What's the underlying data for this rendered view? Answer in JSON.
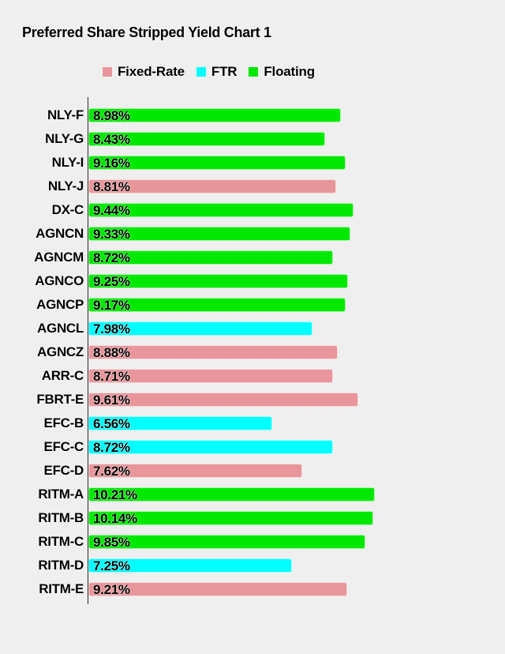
{
  "page": {
    "background": "#EFEFEF"
  },
  "header": {
    "title": "Preferred Share Stripped Yield Chart 1"
  },
  "legend": {
    "items": [
      {
        "label": "Fixed-Rate",
        "color": "#E8969B"
      },
      {
        "label": "FTR",
        "color": "#00FFFF"
      },
      {
        "label": "Floating",
        "color": "#00E800"
      }
    ]
  },
  "chart_data": {
    "type": "bar",
    "orientation": "horizontal",
    "title": "Preferred Share Stripped Yield Chart 1",
    "categories": [
      "NLY-F",
      "NLY-G",
      "NLY-I",
      "NLY-J",
      "DX-C",
      "AGNCN",
      "AGNCM",
      "AGNCO",
      "AGNCP",
      "AGNCL",
      "AGNCZ",
      "ARR-C",
      "FBRT-E",
      "EFC-B",
      "EFC-C",
      "EFC-D",
      "RITM-A",
      "RITM-B",
      "RITM-C",
      "RITM-D",
      "RITM-E"
    ],
    "values": [
      8.98,
      8.43,
      9.16,
      8.81,
      9.44,
      9.33,
      8.72,
      9.25,
      9.17,
      7.98,
      8.88,
      8.71,
      9.61,
      6.56,
      8.72,
      7.62,
      10.21,
      10.14,
      9.85,
      7.25,
      9.21
    ],
    "value_labels": [
      "8.98%",
      "8.43%",
      "9.16%",
      "8.81%",
      "9.44%",
      "9.33%",
      "8.72%",
      "9.25%",
      "9.17%",
      "7.98%",
      "8.88%",
      "8.71%",
      "9.61%",
      "6.56%",
      "8.72%",
      "7.62%",
      "10.21%",
      "10.14%",
      "9.85%",
      "7.25%",
      "9.21%"
    ],
    "bar_types": [
      "Floating",
      "Floating",
      "Floating",
      "Fixed-Rate",
      "Floating",
      "Floating",
      "Floating",
      "Floating",
      "Floating",
      "FTR",
      "Fixed-Rate",
      "Fixed-Rate",
      "Fixed-Rate",
      "FTR",
      "FTR",
      "Fixed-Rate",
      "Floating",
      "Floating",
      "Floating",
      "FTR",
      "Fixed-Rate"
    ],
    "colors_by_type": {
      "Fixed-Rate": "#E8969B",
      "FTR": "#00FFFF",
      "Floating": "#00E800"
    },
    "series": [
      {
        "name": "Fixed-Rate",
        "color": "#E8969B",
        "categories": [
          "NLY-J",
          "AGNCZ",
          "ARR-C",
          "FBRT-E",
          "EFC-D",
          "RITM-E"
        ],
        "values": [
          8.81,
          8.88,
          8.71,
          9.61,
          7.62,
          9.21
        ]
      },
      {
        "name": "FTR",
        "color": "#00FFFF",
        "categories": [
          "AGNCL",
          "EFC-B",
          "EFC-C",
          "RITM-D"
        ],
        "values": [
          7.98,
          6.56,
          8.72,
          7.25
        ]
      },
      {
        "name": "Floating",
        "color": "#00E800",
        "categories": [
          "NLY-F",
          "NLY-G",
          "NLY-I",
          "DX-C",
          "AGNCN",
          "AGNCM",
          "AGNCO",
          "AGNCP",
          "RITM-A",
          "RITM-B",
          "RITM-C"
        ],
        "values": [
          8.98,
          8.43,
          9.16,
          9.44,
          9.33,
          8.72,
          9.25,
          9.17,
          10.21,
          10.14,
          9.85
        ]
      }
    ],
    "xlabel": "",
    "ylabel": "",
    "xlim": [
      0,
      14.5
    ],
    "grid": false,
    "legend_position": "top-center",
    "value_suffix": "%",
    "value_labels_inside_bars": true
  }
}
